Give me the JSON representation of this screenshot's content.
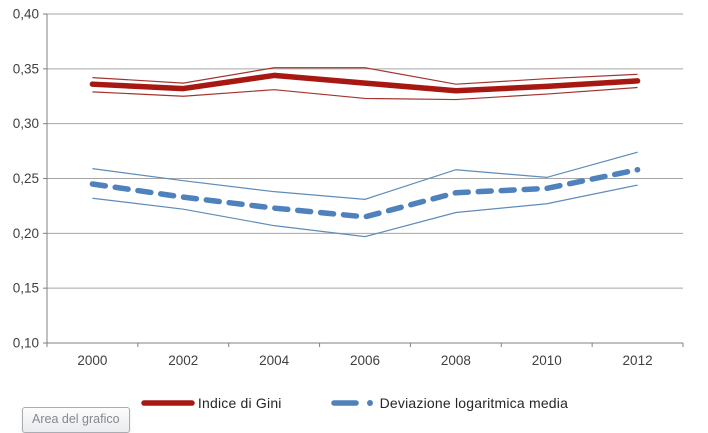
{
  "chart": {
    "tooltip_text": "Area del grafico"
  },
  "colors": {
    "gini_line": "#A81812",
    "gini_band": "#A33430",
    "mld_line": "#4F81BD",
    "mld_band": "#5E8CB8",
    "gridline": "#A6A6A6",
    "axis": "#808080",
    "tick_label": "#404040"
  },
  "chart_data": {
    "type": "line",
    "x_labels": [
      "2000",
      "2002",
      "2004",
      "2006",
      "2008",
      "2010",
      "2012"
    ],
    "ytick_labels": [
      "0,40",
      "0,35",
      "0,30",
      "0,25",
      "0,20",
      "0,15",
      "0,10"
    ],
    "ytick_values": [
      0.4,
      0.35,
      0.3,
      0.25,
      0.2,
      0.15,
      0.1
    ],
    "ylim": [
      0.1,
      0.4
    ],
    "grid": true,
    "legend_position": "bottom",
    "series": [
      {
        "name": "Indice di Gini",
        "color": "#A81812",
        "band_color": "#A33430",
        "style": "solid",
        "values": [
          0.336,
          0.332,
          0.344,
          0.337,
          0.33,
          0.334,
          0.339
        ],
        "band_upper": [
          0.342,
          0.337,
          0.351,
          0.351,
          0.336,
          0.341,
          0.345
        ],
        "band_lower": [
          0.329,
          0.325,
          0.331,
          0.323,
          0.322,
          0.327,
          0.333
        ]
      },
      {
        "name": "Deviazione logaritmica media",
        "color": "#4F81BD",
        "band_color": "#5E8CB8",
        "style": "dashed",
        "values": [
          0.245,
          0.233,
          0.223,
          0.215,
          0.237,
          0.241,
          0.258
        ],
        "band_upper": [
          0.259,
          0.248,
          0.238,
          0.231,
          0.258,
          0.251,
          0.274
        ],
        "band_lower": [
          0.232,
          0.222,
          0.207,
          0.197,
          0.219,
          0.227,
          0.244
        ]
      }
    ]
  }
}
